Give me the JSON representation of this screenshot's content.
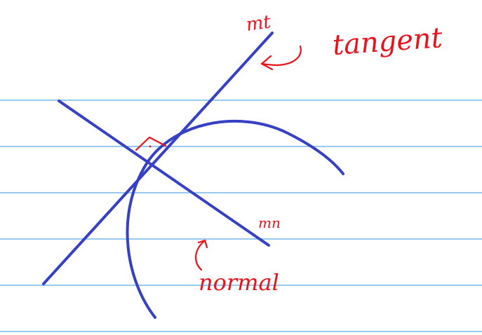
{
  "labels": {
    "mt": "mt",
    "mn": "mn",
    "tangent": "tangent",
    "normal": "normal"
  },
  "colors": {
    "blue_ink": "#3540c4",
    "red_ink": "#e8121b",
    "ruled_line": "#5aa9e6",
    "background": "#ffffff"
  }
}
